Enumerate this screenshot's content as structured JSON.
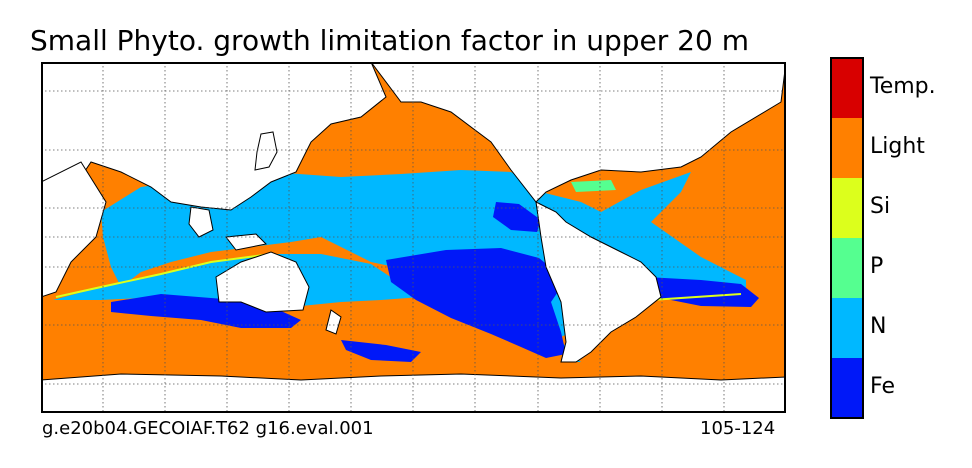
{
  "chart_data": {
    "type": "heatmap",
    "title": "Small Phyto. growth limitation factor in upper 20 m",
    "projection": "global map, longitude 20E to 380E (Pacific-centered)",
    "grid": true,
    "legend_position": "right",
    "categories": [
      {
        "name": "Fe",
        "color": "#0018f8"
      },
      {
        "name": "N",
        "color": "#00b8ff"
      },
      {
        "name": "P",
        "color": "#55ff90"
      },
      {
        "name": "Si",
        "color": "#dcff1c"
      },
      {
        "name": "Light",
        "color": "#ff8000"
      },
      {
        "name": "Temp.",
        "color": "#d80000"
      }
    ],
    "dominant_limitation_by_region": {
      "high_latitudes_north_and_south": "Light",
      "subtropical_gyres": "N",
      "equatorial_east_pacific": "Fe",
      "southern_ocean_band": "Fe",
      "north_atlantic_patch": "P",
      "coastal_fronts": "Si"
    },
    "run_label": "g.e20b04.GECOIAF.T62 g16.eval.001",
    "years_label": "105-124"
  },
  "colors": {
    "land": "#ffffff",
    "gridline": "#555555",
    "coast": "#000000"
  }
}
